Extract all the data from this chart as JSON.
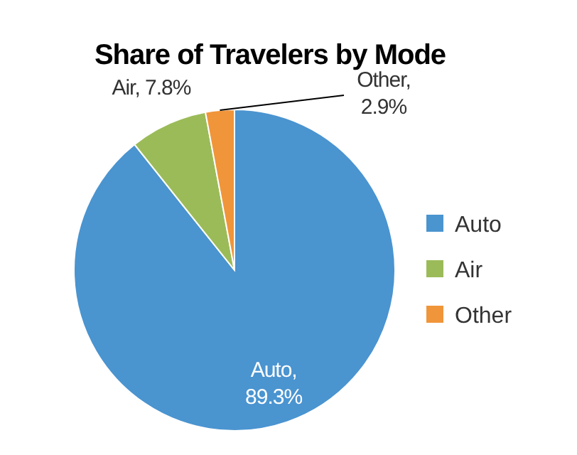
{
  "chart_data": {
    "type": "pie",
    "title": "Share of Travelers by Mode",
    "categories": [
      "Auto",
      "Air",
      "Other"
    ],
    "values": [
      89.3,
      7.8,
      2.9
    ],
    "colors": [
      "#4a94d0",
      "#9bbb59",
      "#f0953a"
    ],
    "value_labels": [
      "Auto, 89.3%",
      "Air, 7.8%",
      "Other, 2.9%"
    ],
    "legend": "right"
  }
}
